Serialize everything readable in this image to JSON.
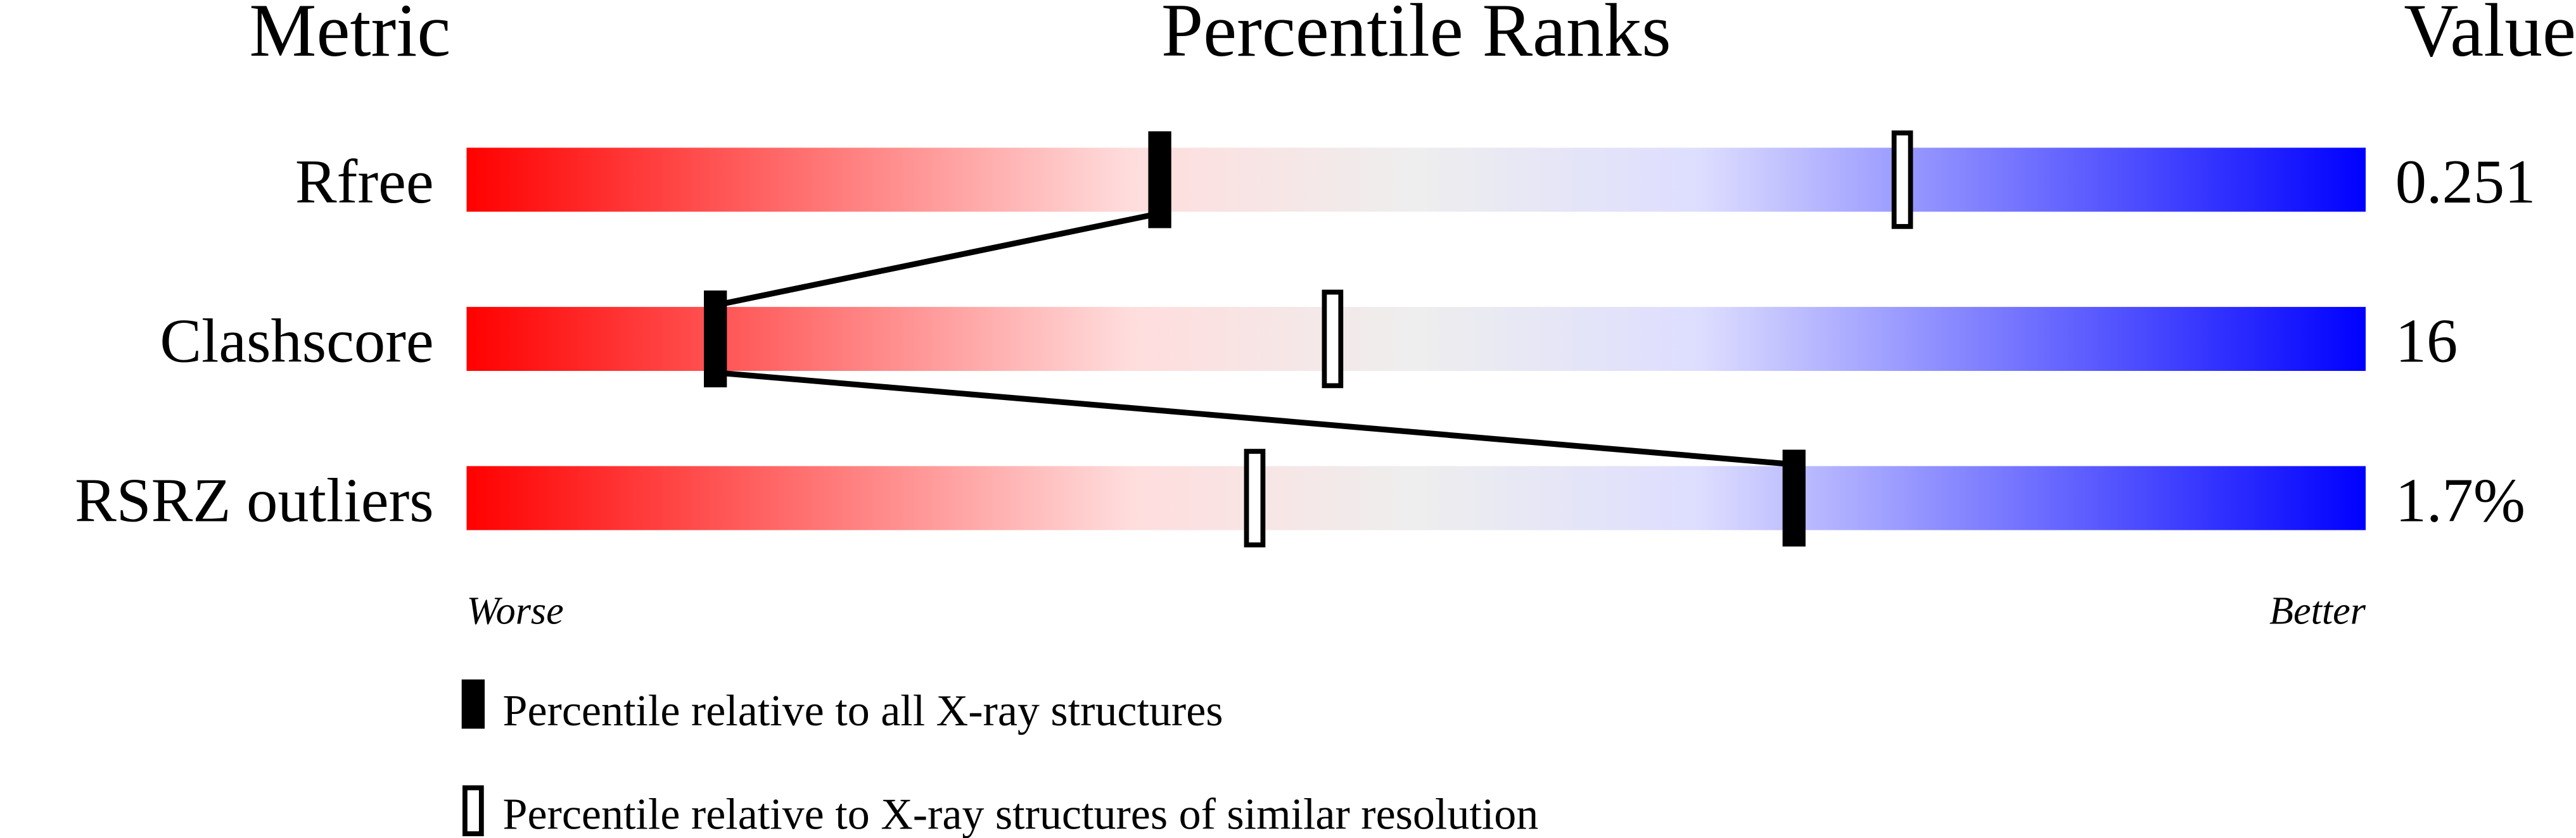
{
  "chart_data": {
    "type": "percentile-bar",
    "headers": {
      "metric": "Metric",
      "ranks": "Percentile Ranks",
      "value": "Value"
    },
    "xlim": [
      0,
      100
    ],
    "metrics": [
      {
        "name": "Rfree",
        "value": "0.251",
        "percentile_all": 36.5,
        "percentile_similar": 75.6
      },
      {
        "name": "Clashscore",
        "value": "16",
        "percentile_all": 13.1,
        "percentile_similar": 45.6
      },
      {
        "name": "RSRZ outliers",
        "value": "1.7%",
        "percentile_all": 69.9,
        "percentile_similar": 41.5
      }
    ],
    "axis_labels": {
      "left": "Worse",
      "right": "Better"
    },
    "legend": {
      "all": "Percentile relative to all X-ray structures",
      "similar": "Percentile relative to X-ray structures of similar resolution"
    },
    "colors": {
      "worse": "#ff0000",
      "middle": "#eeeeee",
      "better": "#0000ff",
      "marker": "#000000"
    }
  }
}
